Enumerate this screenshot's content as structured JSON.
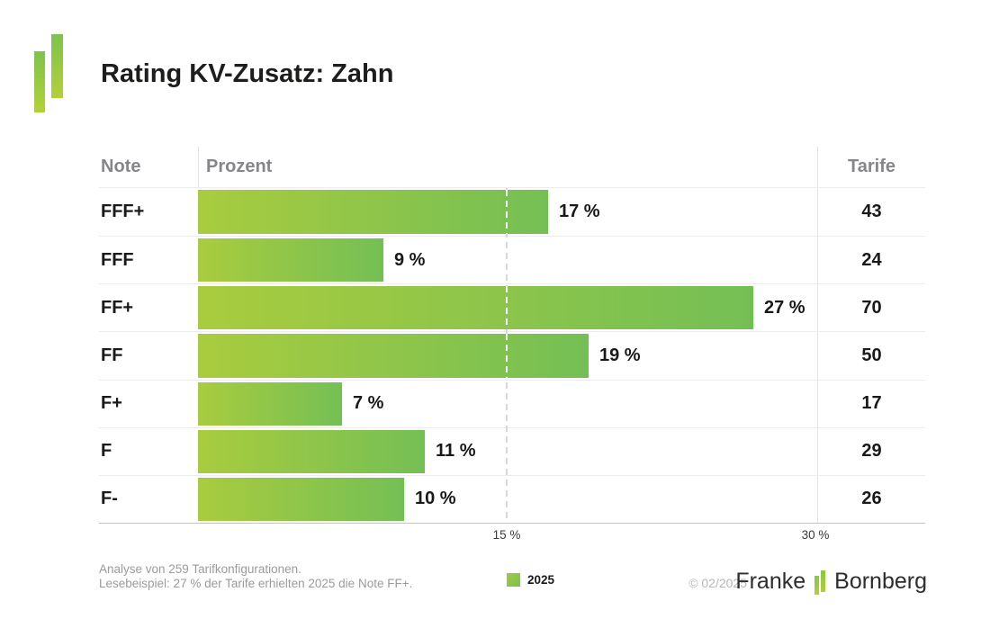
{
  "header": {
    "title": "Rating KV-Zusatz: Zahn"
  },
  "table": {
    "headers": {
      "note": "Note",
      "prozent": "Prozent",
      "tarife": "Tarife"
    }
  },
  "chart_data": {
    "type": "bar",
    "orientation": "horizontal",
    "title": "Rating KV-Zusatz: Zahn",
    "categories": [
      "FFF+",
      "FFF",
      "FF+",
      "FF",
      "F+",
      "F",
      "F-"
    ],
    "series": [
      {
        "name": "2025",
        "values": [
          17,
          9,
          27,
          19,
          7,
          11,
          10
        ]
      }
    ],
    "value_labels": [
      "17 %",
      "9 %",
      "27 %",
      "19 %",
      "7 %",
      "11 %",
      "10 %"
    ],
    "tarife_counts": [
      43,
      24,
      70,
      50,
      17,
      29,
      26
    ],
    "xlim": [
      0,
      30
    ],
    "x_ticks": [
      {
        "value": 15,
        "label": "15 %"
      },
      {
        "value": 30,
        "label": "30 %"
      }
    ],
    "gridline_at": 15,
    "grid": "dashed vertical at 15%",
    "legend_position": "bottom",
    "legend": [
      {
        "label": "2025",
        "color": "#8bc44b"
      }
    ],
    "bar_gradient": [
      "#a9cc3e",
      "#74bf55"
    ]
  },
  "footer": {
    "note_line1": "Analyse von 259 Tarifkonfigurationen.",
    "note_line2": "Lesebeispiel: 27 % der Tarife erhielten 2025 die Note FF+.",
    "legend_label": "2025",
    "copyright": "© 02/2025",
    "brand": {
      "word1": "Franke",
      "word2": "Bornberg"
    }
  },
  "colors": {
    "bar_gradient_start": "#a9cc3e",
    "bar_gradient_end": "#74bf55",
    "logo_green_top": "#7fc24c",
    "logo_green_bottom": "#b2d139",
    "title_text": "#1d1d1b",
    "header_text": "#85868a",
    "footnote_text": "#9b9b9b"
  }
}
